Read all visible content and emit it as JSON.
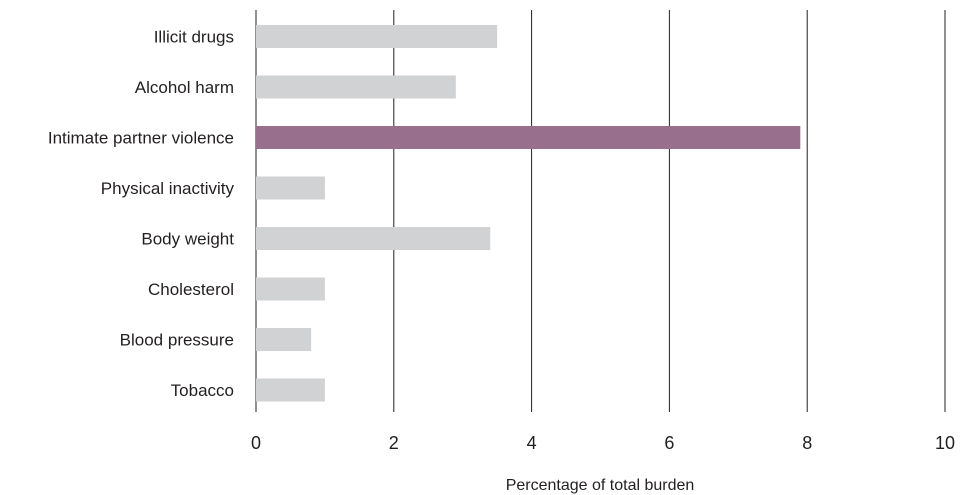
{
  "chart_data": {
    "type": "bar",
    "orientation": "horizontal",
    "categories": [
      "Illicit drugs",
      "Alcohol harm",
      "Intimate partner violence",
      "Physical inactivity",
      "Body weight",
      "Cholesterol",
      "Blood pressure",
      "Tobacco"
    ],
    "values": [
      3.5,
      2.9,
      7.9,
      1.0,
      3.4,
      1.0,
      0.8,
      1.0
    ],
    "highlight_index": 2,
    "xlabel": "Percentage of total burden",
    "ylabel": "",
    "title": "",
    "xlim": [
      0,
      10
    ],
    "xticks": [
      "0",
      "2",
      "4",
      "6",
      "8",
      "10"
    ],
    "grid": "vertical",
    "colors": {
      "bar": "#d1d2d4",
      "highlight": "#98708e",
      "grid": "#231f20",
      "text": "#231f20"
    }
  }
}
